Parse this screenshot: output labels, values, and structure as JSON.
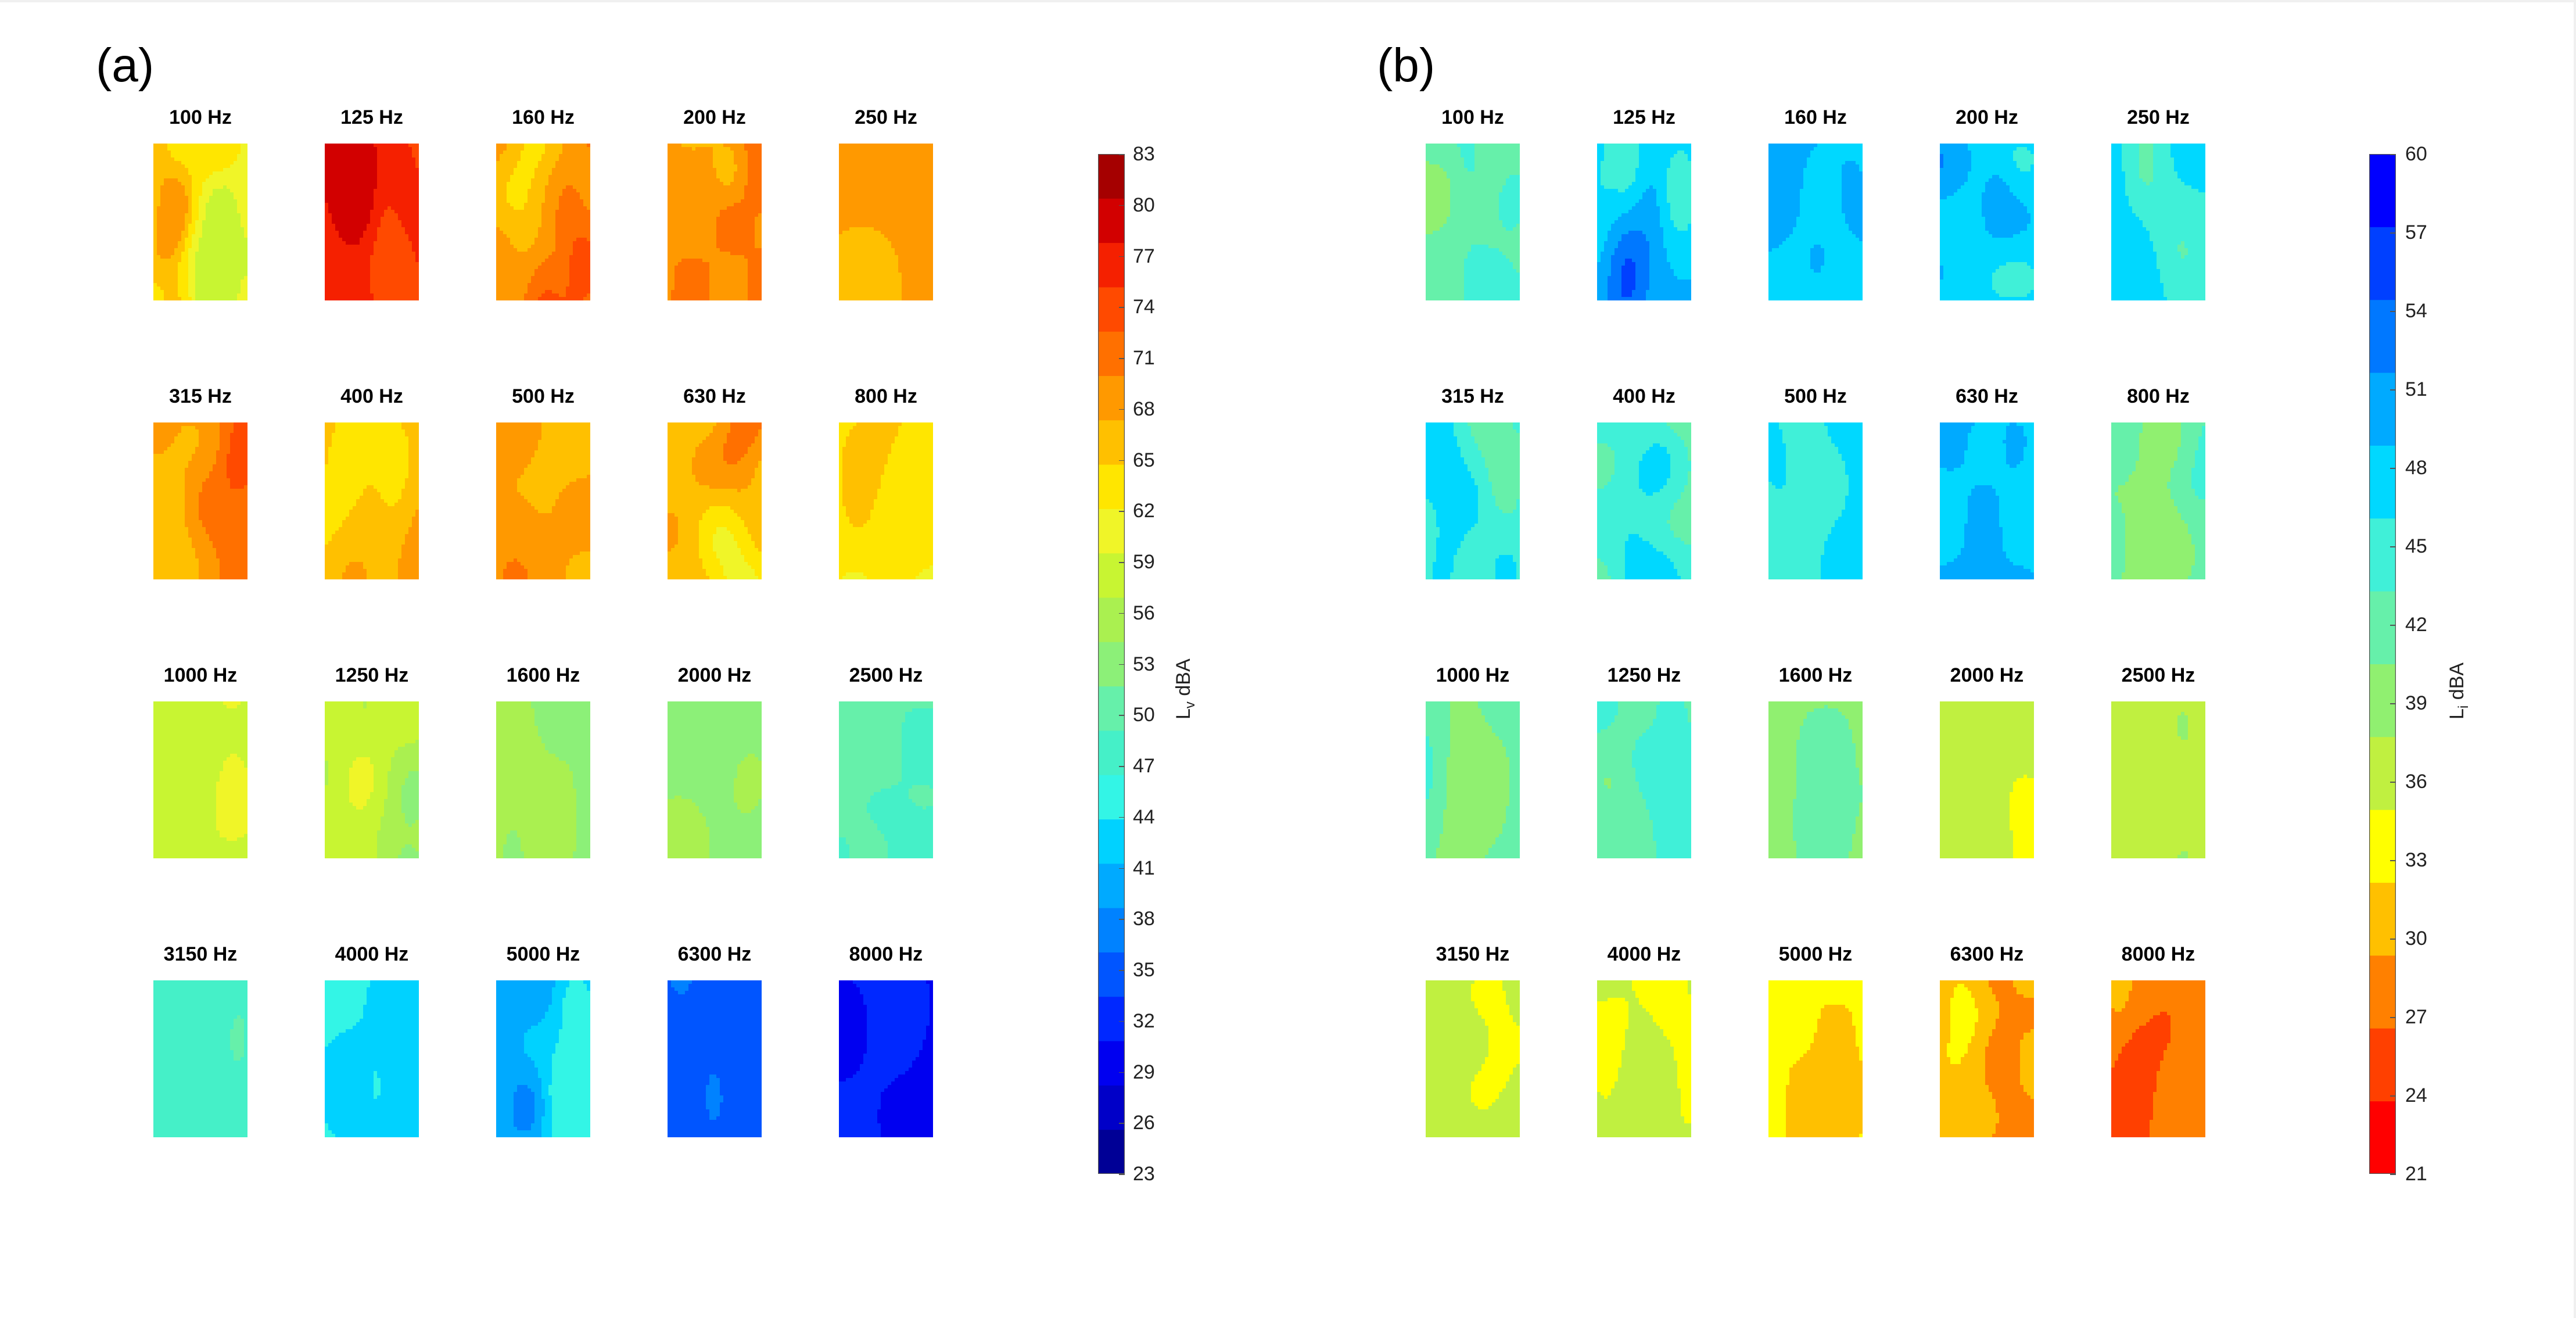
{
  "panels": [
    {
      "id": "a",
      "label": "(a)",
      "colorbar_label": "L",
      "colorbar_subscript": "v",
      "colorbar_unit": "dBA",
      "colorbar_range": [
        23,
        83
      ],
      "colorbar_ticks": [
        83,
        80,
        77,
        74,
        71,
        68,
        65,
        62,
        59,
        56,
        53,
        50,
        47,
        44,
        41,
        38,
        35,
        32,
        29,
        26,
        23
      ],
      "colorbar_colors": [
        "#000096",
        "#0000C8",
        "#0000F0",
        "#0028FF",
        "#0055FF",
        "#0082FF",
        "#00AAFF",
        "#00D2FF",
        "#33F5E6",
        "#45F0C8",
        "#66F0AA",
        "#8CF078",
        "#AAF050",
        "#C8F532",
        "#F0F528",
        "#FFE600",
        "#FFC000",
        "#FF9900",
        "#FF7000",
        "#FF4A00",
        "#F52000",
        "#D20000",
        "#A50000"
      ],
      "chart_data": {
        "type": "heatmap",
        "frequencies": [
          "100 Hz",
          "125 Hz",
          "160 Hz",
          "200 Hz",
          "250 Hz",
          "315 Hz",
          "400 Hz",
          "500 Hz",
          "630 Hz",
          "800 Hz",
          "1000 Hz",
          "1250 Hz",
          "1600 Hz",
          "2000 Hz",
          "2500 Hz",
          "3150 Hz",
          "4000 Hz",
          "5000 Hz",
          "6300 Hz",
          "8000 Hz"
        ],
        "levels": [
          {
            "base": 63,
            "amp": 5
          },
          {
            "base": 75,
            "amp": 5
          },
          {
            "base": 69,
            "amp": 5
          },
          {
            "base": 70,
            "amp": 4
          },
          {
            "base": 68,
            "amp": 4
          },
          {
            "base": 69,
            "amp": 4
          },
          {
            "base": 68,
            "amp": 4
          },
          {
            "base": 68,
            "amp": 4
          },
          {
            "base": 66,
            "amp": 5
          },
          {
            "base": 62,
            "amp": 4
          },
          {
            "base": 59,
            "amp": 3
          },
          {
            "base": 57,
            "amp": 3
          },
          {
            "base": 54,
            "amp": 3
          },
          {
            "base": 53,
            "amp": 2
          },
          {
            "base": 49,
            "amp": 2
          },
          {
            "base": 48.5,
            "amp": 1.5
          },
          {
            "base": 45,
            "amp": 3
          },
          {
            "base": 40,
            "amp": 4
          },
          {
            "base": 36,
            "amp": 1.5
          },
          {
            "base": 31,
            "amp": 1.5
          }
        ]
      }
    },
    {
      "id": "b",
      "label": "(b)",
      "colorbar_label": "L",
      "colorbar_subscript": "i",
      "colorbar_unit": "dBA",
      "colorbar_range": [
        21,
        60
      ],
      "colorbar_ticks": [
        60,
        57,
        54,
        51,
        48,
        45,
        42,
        39,
        36,
        33,
        30,
        27,
        24,
        21
      ],
      "colorbar_colors": [
        "#0000FF",
        "#0040FF",
        "#0078FF",
        "#00AAFF",
        "#00D8FF",
        "#40F0D8",
        "#66F0AA",
        "#90F070",
        "#C0F040",
        "#FFFF00",
        "#FFC000",
        "#FF8000",
        "#FF4000",
        "#FF0000"
      ],
      "chart_data": {
        "type": "heatmap",
        "frequencies": [
          "100 Hz",
          "125 Hz",
          "160 Hz",
          "200 Hz",
          "250 Hz",
          "315 Hz",
          "400 Hz",
          "500 Hz",
          "630 Hz",
          "800 Hz",
          "1000 Hz",
          "1250 Hz",
          "1600 Hz",
          "2000 Hz",
          "2500 Hz",
          "3150 Hz",
          "4000 Hz",
          "5000 Hz",
          "6300 Hz",
          "8000 Hz"
        ],
        "levels": [
          {
            "base": 42,
            "amp": 4
          },
          {
            "base": 49,
            "amp": 6
          },
          {
            "base": 47,
            "amp": 4
          },
          {
            "base": 48,
            "amp": 6
          },
          {
            "base": 46,
            "amp": 4
          },
          {
            "base": 45,
            "amp": 4
          },
          {
            "base": 44,
            "amp": 5
          },
          {
            "base": 48,
            "amp": 4
          },
          {
            "base": 49,
            "amp": 4
          },
          {
            "base": 42,
            "amp": 3
          },
          {
            "base": 42,
            "amp": 3
          },
          {
            "base": 42,
            "amp": 3
          },
          {
            "base": 39,
            "amp": 2
          },
          {
            "base": 35.5,
            "amp": 1.5
          },
          {
            "base": 37,
            "amp": 2
          },
          {
            "base": 36,
            "amp": 2
          },
          {
            "base": 35,
            "amp": 2.5
          },
          {
            "base": 33,
            "amp": 3
          },
          {
            "base": 30,
            "amp": 3
          },
          {
            "base": 28,
            "amp": 3
          }
        ]
      }
    }
  ]
}
